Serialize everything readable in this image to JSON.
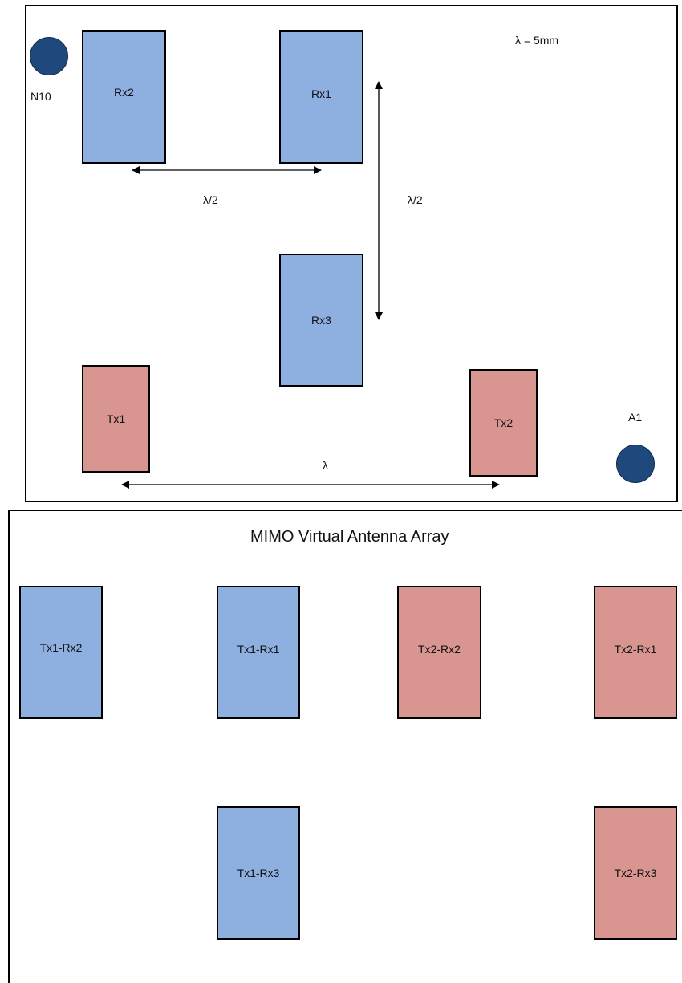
{
  "physical_layout": {
    "wavelength_note": "λ = 5mm",
    "markers": {
      "top_left": "N10",
      "bottom_right": "A1"
    },
    "receivers": [
      {
        "id": "rx2",
        "label": "Rx2"
      },
      {
        "id": "rx1",
        "label": "Rx1"
      },
      {
        "id": "rx3",
        "label": "Rx3"
      }
    ],
    "transmitters": [
      {
        "id": "tx1",
        "label": "Tx1"
      },
      {
        "id": "tx2",
        "label": "Tx2"
      }
    ],
    "spacings": {
      "rx2_rx1": "λ/2",
      "rx1_rx3": "λ/2",
      "tx1_tx2": "λ"
    },
    "colors": {
      "rx_fill": "#8db0e1",
      "tx_fill": "#d99590",
      "marker_fill": "#1f497d"
    }
  },
  "virtual_array": {
    "title": "MIMO Virtual Antenna Array",
    "elements": [
      {
        "label": "Tx1-Rx2",
        "group": "tx1"
      },
      {
        "label": "Tx1-Rx1",
        "group": "tx1"
      },
      {
        "label": "Tx2-Rx2",
        "group": "tx2"
      },
      {
        "label": "Tx2-Rx1",
        "group": "tx2"
      },
      {
        "label": "Tx1-Rx3",
        "group": "tx1"
      },
      {
        "label": "Tx2-Rx3",
        "group": "tx2"
      }
    ]
  }
}
